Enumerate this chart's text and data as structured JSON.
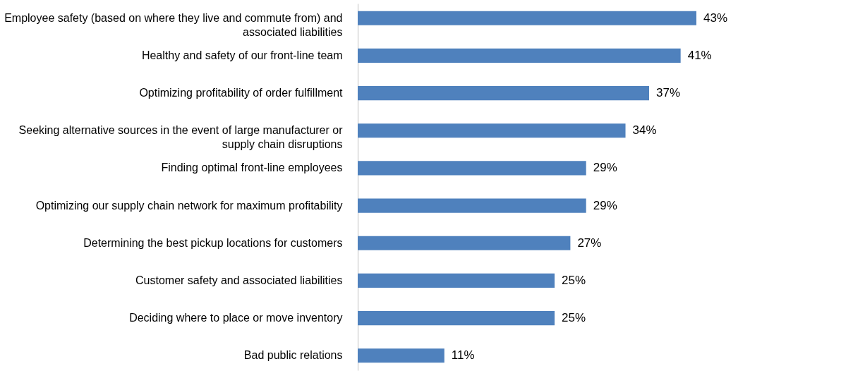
{
  "chart_data": {
    "type": "bar",
    "orientation": "horizontal",
    "categories": [
      "Employee safety (based on where they live and commute from) and associated liabilities",
      "Healthy and safety of our front-line team",
      "Optimizing profitability of order fulfillment",
      "Seeking alternative sources in the event of large manufacturer or supply chain disruptions",
      "Finding optimal front-line employees",
      "Optimizing our supply chain network for maximum profitability",
      "Determining the best pickup locations for customers",
      "Customer safety and associated liabilities",
      "Deciding where to place or move inventory",
      "Bad public relations"
    ],
    "values": [
      43,
      41,
      37,
      34,
      29,
      29,
      27,
      25,
      25,
      11
    ],
    "value_labels": [
      "43%",
      "41%",
      "37%",
      "34%",
      "29%",
      "29%",
      "27%",
      "25%",
      "25%",
      "11%"
    ],
    "color": "#4f81bd"
  }
}
